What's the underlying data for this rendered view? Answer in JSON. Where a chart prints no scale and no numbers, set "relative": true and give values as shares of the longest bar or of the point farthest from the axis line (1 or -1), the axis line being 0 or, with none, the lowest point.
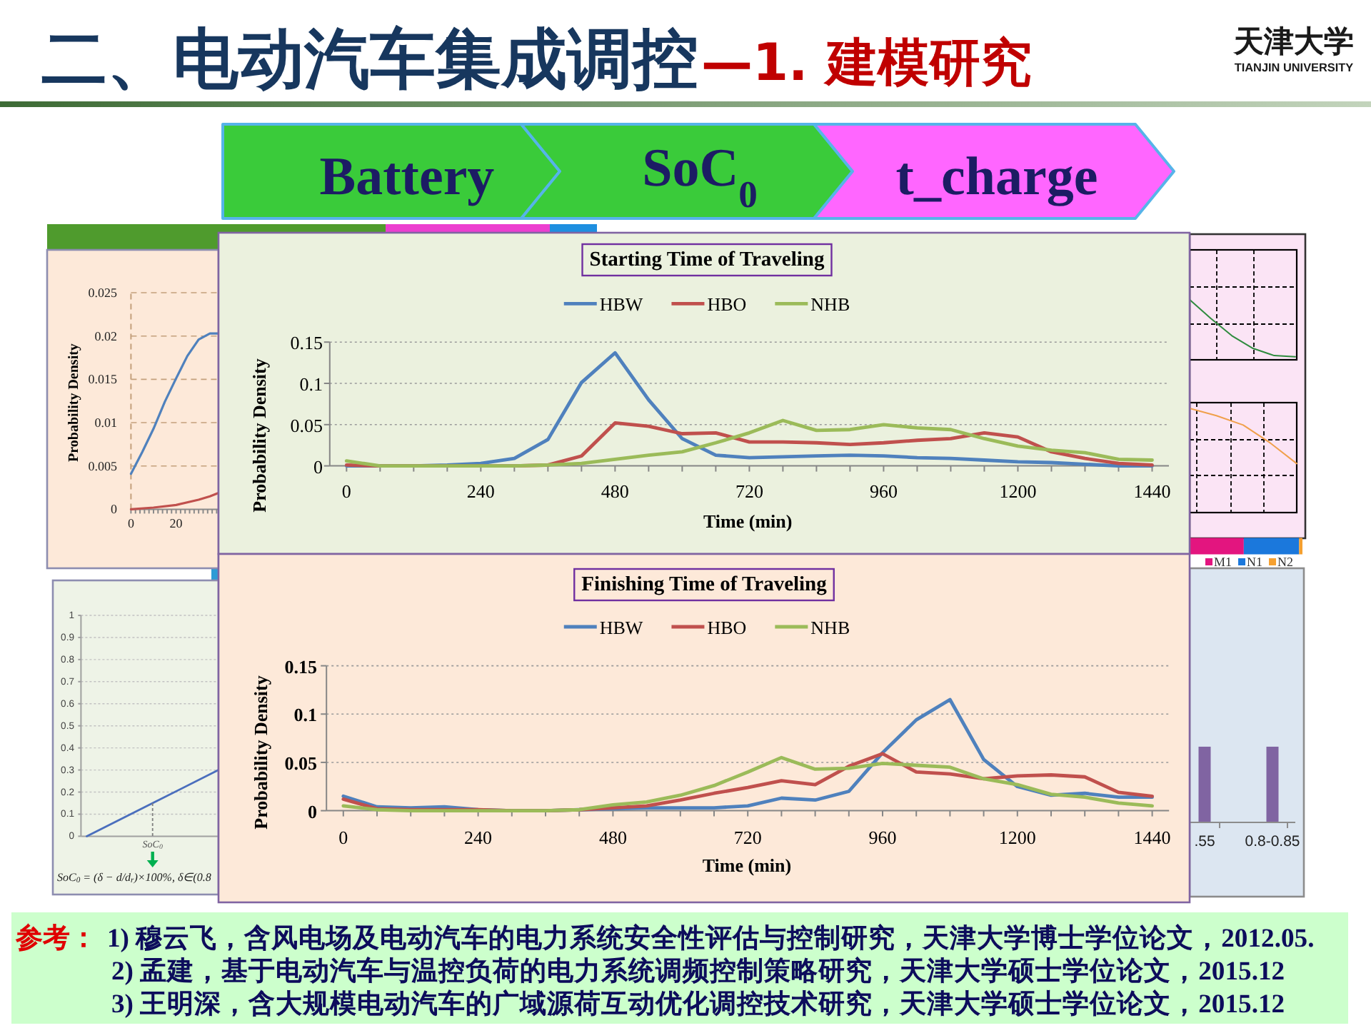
{
  "chart_data": [
    {
      "type": "other",
      "title": "二、电动汽车集成调控",
      "subtitle": "—1. 建模研究",
      "annotations": [
        "天津大学",
        "TIANJIN UNIVERSITY",
        "Battery",
        "SoC$_{0}$",
        "t_charge",
        "参考：",
        "1) 穆云飞，含风电场及电动汽车的电力系统安全性评估与控制研究，天津大学博士学位论文，2012.05.",
        "2) 孟建，基于电动汽车与温控负荷的电力系统调频控制策略研究，天津大学硕士学位论文，2015.12",
        "3) 王明深，含大规模电动汽车的广域源荷互动优化调控技术研究，天津大学硕士学位论文，2015.12"
      ]
    },
    {
      "type": "line",
      "ylabel": "Probability Density",
      "xlim": [
        0,
        39
      ],
      "xticks": [
        0,
        {
          "value": 2,
          "label": null
        },
        {
          "value": 4,
          "label": null
        },
        {
          "value": 6,
          "label": null
        },
        {
          "value": 8,
          "label": null
        },
        {
          "value": 10,
          "label": null
        },
        {
          "value": 12,
          "label": null
        },
        {
          "value": 14,
          "label": null
        },
        {
          "value": 16,
          "label": null
        },
        {
          "value": 18,
          "label": null
        },
        20,
        {
          "value": 22,
          "label": null
        },
        {
          "value": 24,
          "label": null
        },
        {
          "value": 26,
          "label": null
        },
        {
          "value": 28,
          "label": null
        },
        {
          "value": 30,
          "label": null
        },
        {
          "value": 32,
          "label": null
        },
        {
          "value": 34,
          "label": null
        },
        {
          "value": 36,
          "label": null
        },
        {
          "value": 38,
          "label": null
        }
      ],
      "ylim": [
        0,
        0.025
      ],
      "yticks": [
        0,
        0.005,
        0.01,
        0.015,
        0.02,
        0.025
      ],
      "grid": "y",
      "series": [
        {
          "color": "#4f81bd",
          "x": [
            0,
            5,
            10,
            15,
            20,
            25,
            30,
            35,
            39
          ],
          "values": [
            0.0041,
            0.0066,
            0.0093,
            0.0124,
            0.0151,
            0.0177,
            0.0196,
            0.0203,
            0.0203
          ]
        },
        {
          "color": "#c0504d",
          "x": [
            0,
            10,
            20,
            30,
            35,
            39
          ],
          "values": [
            0,
            0.0002,
            0.0005,
            0.0011,
            0.0015,
            0.0019
          ]
        }
      ]
    },
    {
      "type": "line",
      "categories": [
        null,
        null,
        null
      ],
      "values": [
        0,
        0.15,
        0.3
      ],
      "color": "#4a6ebd",
      "ylim": [
        0,
        1
      ],
      "yticks": [
        0,
        0.1,
        0.2,
        0.3,
        0.4,
        0.5,
        0.6,
        0.7,
        0.8,
        0.9,
        1
      ],
      "grid": "y",
      "annotations": [
        "SoC$_{0}$",
        "SoC$_{0}$ = (δ − d/d$_{r}$)×100%,  δ∈(0.8"
      ]
    },
    {
      "type": "line",
      "title": "Starting Time of Traveling",
      "xlabel": "Time (min)",
      "ylabel": "Probability Density",
      "x": [
        0,
        60,
        120,
        180,
        240,
        300,
        360,
        420,
        480,
        540,
        600,
        660,
        720,
        780,
        840,
        900,
        960,
        1020,
        1080,
        1140,
        1200,
        1260,
        1320,
        1380,
        1440
      ],
      "xlim": [
        -30,
        1470
      ],
      "xticks": [
        0,
        {
          "value": 60,
          "label": null
        },
        {
          "value": 120,
          "label": null
        },
        {
          "value": 180,
          "label": null
        },
        240,
        {
          "value": 300,
          "label": null
        },
        {
          "value": 360,
          "label": null
        },
        {
          "value": 420,
          "label": null
        },
        480,
        {
          "value": 540,
          "label": null
        },
        {
          "value": 600,
          "label": null
        },
        {
          "value": 660,
          "label": null
        },
        720,
        {
          "value": 780,
          "label": null
        },
        {
          "value": 840,
          "label": null
        },
        {
          "value": 900,
          "label": null
        },
        960,
        {
          "value": 1020,
          "label": null
        },
        {
          "value": 1080,
          "label": null
        },
        {
          "value": 1140,
          "label": null
        },
        1200,
        {
          "value": 1260,
          "label": null
        },
        {
          "value": 1320,
          "label": null
        },
        {
          "value": 1380,
          "label": null
        },
        1440
      ],
      "ylim": [
        0,
        0.15
      ],
      "yticks": [
        0,
        0.05,
        0.1,
        0.15
      ],
      "grid": "y",
      "legend": "top",
      "series": [
        {
          "name": "HBW",
          "color": "#4f81bd",
          "values": [
            0,
            0,
            0,
            0.001,
            0.003,
            0.009,
            0.032,
            0.101,
            0.137,
            0.08,
            0.033,
            0.013,
            0.01,
            0.011,
            0.012,
            0.013,
            0.012,
            0.01,
            0.009,
            0.007,
            0.005,
            0.004,
            0.002,
            0,
            0
          ]
        },
        {
          "name": "HBO",
          "color": "#c0504d",
          "values": [
            0.001,
            0,
            0,
            0,
            0,
            0,
            0.001,
            0.012,
            0.052,
            0.048,
            0.039,
            0.04,
            0.029,
            0.029,
            0.028,
            0.026,
            0.028,
            0.031,
            0.033,
            0.04,
            0.035,
            0.017,
            0.009,
            0.003,
            0.001
          ]
        },
        {
          "name": "NHB",
          "color": "#9bbb59",
          "values": [
            0.006,
            0,
            0,
            0,
            0,
            0,
            0.001,
            0.003,
            0.008,
            0.013,
            0.017,
            0.028,
            0.04,
            0.055,
            0.043,
            0.044,
            0.05,
            0.046,
            0.044,
            0.033,
            0.024,
            0.019,
            0.016,
            0.008,
            0.007
          ]
        }
      ]
    },
    {
      "type": "line",
      "title": "Finishing Time of Traveling",
      "xlabel": "Time (min)",
      "ylabel": "Probability Density",
      "x": [
        0,
        60,
        120,
        180,
        240,
        300,
        360,
        420,
        480,
        540,
        600,
        660,
        720,
        780,
        840,
        900,
        960,
        1020,
        1080,
        1140,
        1200,
        1260,
        1320,
        1380,
        1440
      ],
      "xlim": [
        -30,
        1470
      ],
      "xticks": [
        0,
        {
          "value": 60,
          "label": null
        },
        {
          "value": 120,
          "label": null
        },
        {
          "value": 180,
          "label": null
        },
        240,
        {
          "value": 300,
          "label": null
        },
        {
          "value": 360,
          "label": null
        },
        {
          "value": 420,
          "label": null
        },
        480,
        {
          "value": 540,
          "label": null
        },
        {
          "value": 600,
          "label": null
        },
        {
          "value": 660,
          "label": null
        },
        720,
        {
          "value": 780,
          "label": null
        },
        {
          "value": 840,
          "label": null
        },
        {
          "value": 900,
          "label": null
        },
        960,
        {
          "value": 1020,
          "label": null
        },
        {
          "value": 1080,
          "label": null
        },
        {
          "value": 1140,
          "label": null
        },
        1200,
        {
          "value": 1260,
          "label": null
        },
        {
          "value": 1320,
          "label": null
        },
        {
          "value": 1380,
          "label": null
        },
        1440
      ],
      "ylim": [
        0,
        0.15
      ],
      "yticks": [
        0,
        0.05,
        0.1,
        0.15
      ],
      "grid": "y",
      "legend": "top",
      "series": [
        {
          "name": "HBW",
          "color": "#4f81bd",
          "values": [
            0.015,
            0.004,
            0.003,
            0.004,
            0.001,
            0,
            0,
            0.001,
            0.002,
            0.003,
            0.003,
            0.003,
            0.005,
            0.013,
            0.011,
            0.02,
            0.06,
            0.094,
            0.115,
            0.053,
            0.025,
            0.016,
            0.018,
            0.014,
            0.014
          ]
        },
        {
          "name": "HBO",
          "color": "#c0504d",
          "values": [
            0.012,
            0.002,
            0.001,
            0.001,
            0.001,
            0,
            0,
            0.001,
            0.003,
            0.005,
            0.011,
            0.018,
            0.024,
            0.031,
            0.027,
            0.046,
            0.059,
            0.04,
            0.038,
            0.033,
            0.036,
            0.037,
            0.035,
            0.019,
            0.015
          ]
        },
        {
          "name": "NHB",
          "color": "#9bbb59",
          "values": [
            0.005,
            0.001,
            0,
            0,
            0,
            0,
            0,
            0.001,
            0.006,
            0.009,
            0.016,
            0.026,
            0.04,
            0.055,
            0.043,
            0.044,
            0.049,
            0.047,
            0.045,
            0.033,
            0.027,
            0.017,
            0.014,
            0.008,
            0.005
          ]
        }
      ]
    },
    {
      "type": "line",
      "relative": true,
      "categories": [
        null,
        null,
        null,
        null,
        null,
        null
      ],
      "values": [
        1,
        0.69,
        0.4,
        0.19,
        0.07,
        0.05
      ],
      "color": "#2e8b3e",
      "grid": true
    },
    {
      "type": "line",
      "relative": true,
      "categories": [
        null,
        null,
        null,
        null,
        null
      ],
      "values": [
        1,
        0.93,
        0.84,
        0.67,
        0.47
      ],
      "color": "#f0a04b",
      "grid": true
    },
    {
      "type": "bar",
      "orientation": "horizontal",
      "stacked": true,
      "relative": true,
      "categories": [
        null
      ],
      "legend": "bottom",
      "series": [
        {
          "name": "M1",
          "color": "#e3157f",
          "values": [
            0.48
          ]
        },
        {
          "name": "N1",
          "color": "#1b78dc",
          "values": [
            0.49
          ]
        },
        {
          "name": "N2",
          "color": "#f5a030",
          "values": [
            0.03
          ]
        }
      ]
    },
    {
      "type": "bar",
      "relative": true,
      "categories": [
        ".55",
        "0.8-0.85"
      ],
      "values": [
        1,
        1
      ],
      "color": "#8064a2"
    }
  ]
}
